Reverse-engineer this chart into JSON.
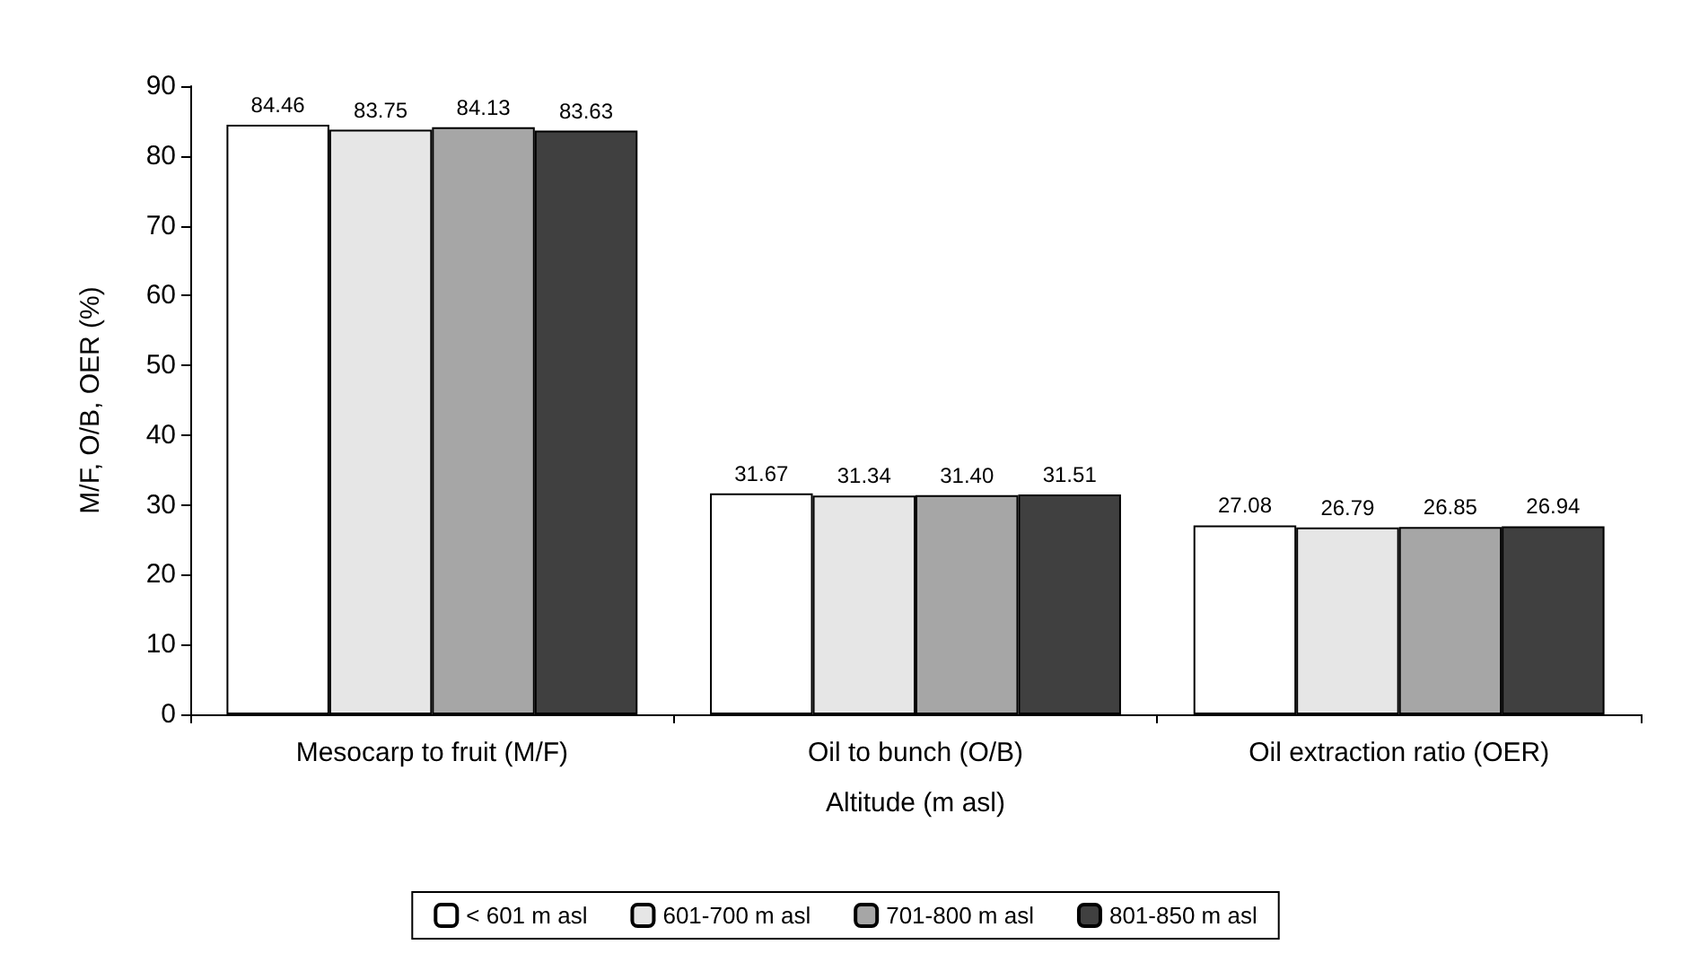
{
  "chart_data": {
    "type": "bar",
    "xlabel": "Altitude (m asl)",
    "ylabel": "M/F, O/B, OER (%)",
    "categories": [
      "Mesocarp to fruit (M/F)",
      "Oil to bunch (O/B)",
      "Oil extraction ratio (OER)"
    ],
    "series": [
      {
        "name": "< 601 m asl",
        "color": "#ffffff",
        "values": [
          84.46,
          31.67,
          27.08
        ]
      },
      {
        "name": "601-700 m asl",
        "color": "#e6e6e6",
        "values": [
          83.75,
          31.34,
          26.79
        ]
      },
      {
        "name": "701-800 m asl",
        "color": "#a6a6a6",
        "values": [
          84.13,
          31.4,
          26.85
        ]
      },
      {
        "name": "801-850 m asl",
        "color": "#404040",
        "values": [
          83.63,
          31.51,
          26.94
        ]
      }
    ],
    "value_labels": [
      [
        "84.46",
        "31.67",
        "27.08"
      ],
      [
        "83.75",
        "31.34",
        "26.79"
      ],
      [
        "84.13",
        "31.40",
        "26.85"
      ],
      [
        "83.63",
        "31.51",
        "26.94"
      ]
    ],
    "ylim": [
      0,
      90
    ],
    "yticks": [
      0,
      10,
      20,
      30,
      40,
      50,
      60,
      70,
      80,
      90
    ],
    "grid": false,
    "legend": "bottom"
  }
}
